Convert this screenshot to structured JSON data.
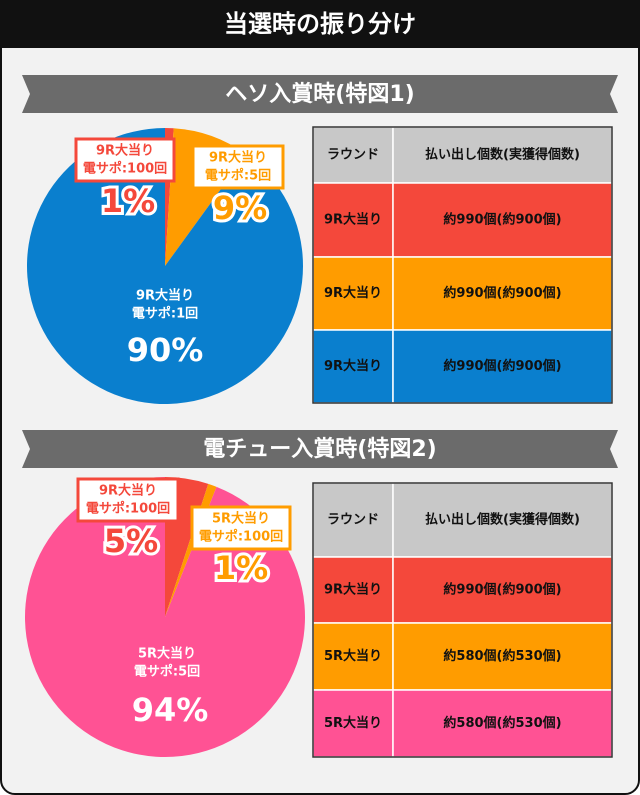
{
  "title": "当選時の振り分け",
  "chart_data": [
    {
      "type": "pie",
      "title": "ヘソ入賞時(特図1)",
      "categories": [
        [
          "9R大当り",
          "電サポ:100回"
        ],
        [
          "9R大当り",
          "電サポ:5回"
        ],
        [
          "9R大当り",
          "電サポ:1回"
        ]
      ],
      "values": [
        1,
        9,
        90
      ],
      "value_labels": [
        "1%",
        "9%",
        "90%"
      ],
      "colors": [
        "#f4483b",
        "#ff9c00",
        "#0a7fce"
      ]
    },
    {
      "type": "pie",
      "title": "電チュー入賞時(特図2)",
      "categories": [
        [
          "9R大当り",
          "電サポ:100回"
        ],
        [
          "5R大当り",
          "電サポ:100回"
        ],
        [
          "5R大当り",
          "電サポ:5回"
        ]
      ],
      "values": [
        5,
        1,
        94
      ],
      "value_labels": [
        "5%",
        "1%",
        "94%"
      ],
      "colors": [
        "#f4483b",
        "#ff9c00",
        "#ff5294"
      ]
    }
  ],
  "tables": [
    {
      "header": [
        "ラウンド",
        "払い出し個数(実獲得個数)"
      ],
      "rows": [
        [
          "9R大当り",
          "約990個(約900個)"
        ],
        [
          "9R大当り",
          "約990個(約900個)"
        ],
        [
          "9R大当り",
          "約990個(約900個)"
        ]
      ]
    },
    {
      "header": [
        "ラウンド",
        "払い出し個数(実獲得個数)"
      ],
      "rows": [
        [
          "9R大当り",
          "約990個(約900個)"
        ],
        [
          "5R大当り",
          "約580個(約530個)"
        ],
        [
          "5R大当り",
          "約580個(約530個)"
        ]
      ]
    }
  ]
}
